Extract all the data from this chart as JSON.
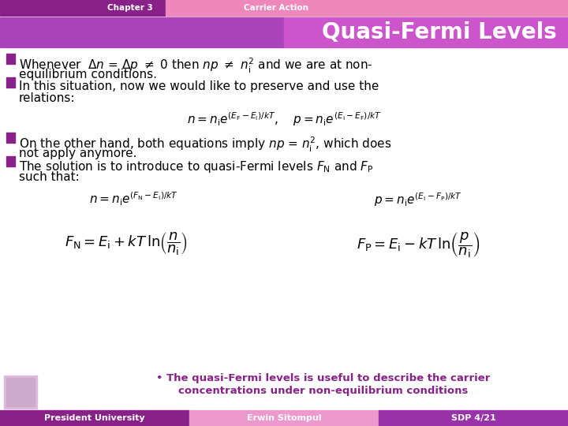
{
  "title": "Quasi-Fermi Levels",
  "header_left": "Chapter 3",
  "header_right": "Carrier Action",
  "footer_left": "President University",
  "footer_center": "Erwin Sitompul",
  "footer_right": "SDP 4/21",
  "bg_color": "#FFFFFF",
  "header_left_bg": "#882288",
  "header_right_bg": "#EE88BB",
  "title_bg_left": "#AA44BB",
  "title_bg_right": "#CC66CC",
  "footer_left_bg": "#882288",
  "footer_center_bg": "#EE99CC",
  "footer_right_bg": "#9933AA",
  "bullet_color": "#882288",
  "title_color": "#FFFFFF",
  "header_text_color": "#FFFFFF",
  "footer_text_color": "#FFFFFF",
  "body_text_color": "#000000",
  "note_color": "#882288",
  "note_line1": "• The quasi-Fermi levels is useful to describe the carrier",
  "note_line2": "concentrations under non-equilibrium conditions"
}
